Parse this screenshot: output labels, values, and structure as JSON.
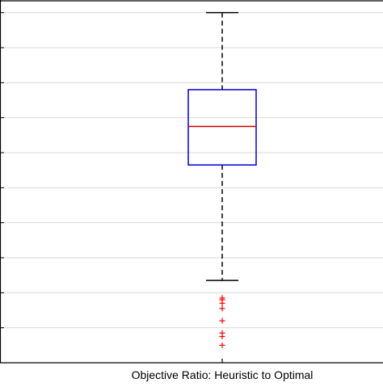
{
  "chart_data": {
    "type": "box",
    "title": "",
    "xlabel": "",
    "ylabel": "",
    "categories": [
      "Objective Ratio: Heuristic to Optimal"
    ],
    "ylim": [
      0,
      10.5
    ],
    "yticks": [
      1,
      2,
      3,
      4,
      5,
      6,
      7,
      8,
      9,
      10
    ],
    "grid": true,
    "box": {
      "whisker_low": 2.35,
      "q1": 5.65,
      "median": 6.75,
      "q3": 7.8,
      "whisker_high": 10.0,
      "outliers": [
        1.85,
        1.8,
        1.7,
        1.55,
        1.2,
        0.85,
        0.75,
        0.5
      ]
    },
    "colors": {
      "box": "#0000cc",
      "median": "#cc0000",
      "whisker": "#000000",
      "outlier": "#ff0000",
      "grid": "#d9d9d9"
    }
  }
}
